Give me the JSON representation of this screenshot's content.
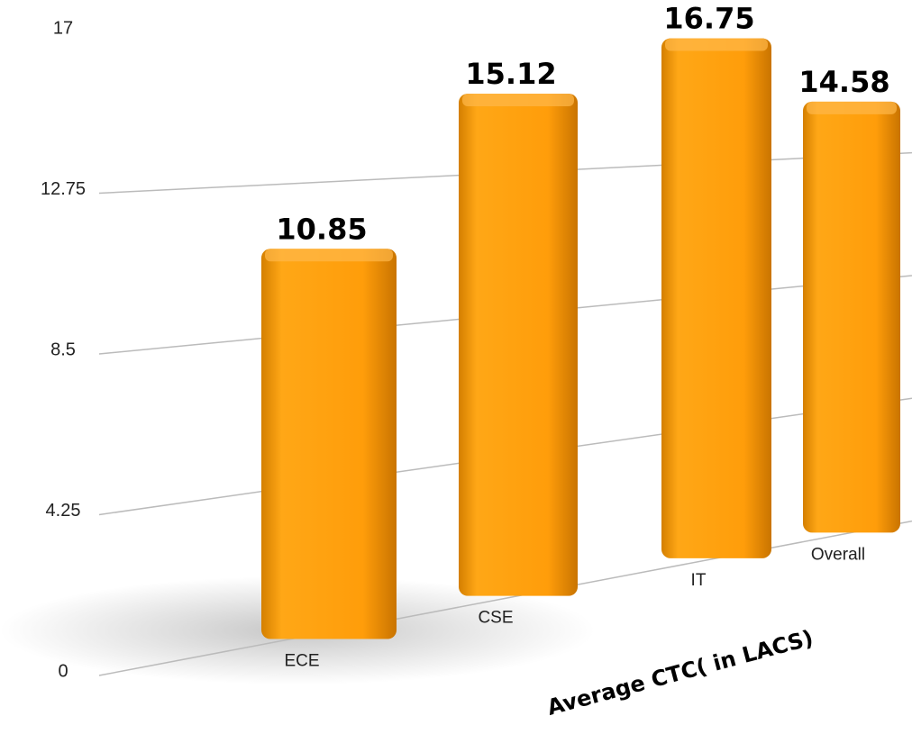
{
  "chart_data": {
    "type": "bar",
    "x_label": "Average CTC( in LACS)",
    "categories": [
      "ECE",
      "CSE",
      "IT",
      "Overall"
    ],
    "values": [
      10.85,
      15.12,
      16.75,
      14.58
    ],
    "color": "#ff9f0f",
    "ylim": [
      0,
      17
    ],
    "yticks": [
      0,
      4.25,
      8.5,
      12.75,
      17
    ],
    "grid": true
  }
}
